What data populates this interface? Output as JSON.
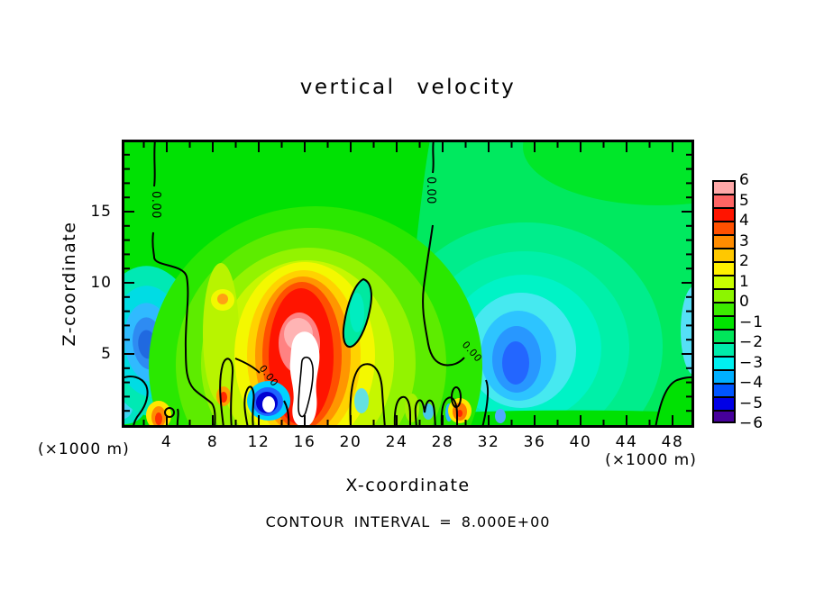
{
  "title": "vertical velocity",
  "axes": {
    "x": {
      "label": "X-coordinate",
      "ticks": [
        4,
        8,
        12,
        16,
        20,
        24,
        28,
        32,
        36,
        40,
        44,
        48
      ],
      "minor_step": 2,
      "range": [
        0,
        50
      ]
    },
    "z": {
      "label": "Z-coordinate",
      "ticks": [
        5,
        10,
        15
      ],
      "minor_step": 1,
      "range": [
        0,
        20
      ]
    }
  },
  "units": {
    "left": "(×1000 m)",
    "right": "(×1000 m)"
  },
  "colorbar": {
    "tick_labels": [
      "6",
      "5",
      "4",
      "3",
      "2",
      "1",
      "0",
      "−1",
      "−2",
      "−3",
      "−4",
      "−5",
      "−6"
    ],
    "cell_colors": [
      "#FFA8A8",
      "#FF6464",
      "#FF1400",
      "#FF5000",
      "#FF8C00",
      "#FFC800",
      "#FFF000",
      "#C8FF00",
      "#8CF500",
      "#3CEB00",
      "#00E400",
      "#00E65A",
      "#00EBAA",
      "#00F0F0",
      "#00AFFF",
      "#0055FF",
      "#0000E6",
      "#46009B"
    ]
  },
  "contour_label": "0.00",
  "footer": "CONTOUR INTERVAL = 8.000E+00",
  "chart_data": {
    "type": "heatmap",
    "subtype": "filled_contour_with_zero_contour_lines",
    "title": "vertical velocity",
    "xlabel": "X-coordinate (×1000 m)",
    "ylabel": "Z-coordinate (×1000 m)",
    "xlim": [
      0,
      50
    ],
    "ylim": [
      0,
      20
    ],
    "x_ticks": [
      4,
      8,
      12,
      16,
      20,
      24,
      28,
      32,
      36,
      40,
      44,
      48
    ],
    "y_ticks": [
      5,
      10,
      15
    ],
    "colorbar": {
      "orientation": "vertical",
      "position": "right",
      "tick_labels": [
        6,
        5,
        4,
        3,
        2,
        1,
        0,
        -1,
        -2,
        -3,
        -4,
        -5,
        -6
      ]
    },
    "contour_interval_note": "CONTOUR INTERVAL = 8.000E+00",
    "zero_contour_label": "0.00",
    "features": [
      {
        "label": "strong updraft maximum",
        "x_center": 16.5,
        "z_center": 4.5,
        "x_extent": [
          12,
          22
        ],
        "z_extent": [
          0,
          11
        ],
        "level": "> 6 (white off-scale core)"
      },
      {
        "label": "pink/red ring around updraft",
        "x_center": 16,
        "z_center": 6,
        "level": "5 to 6"
      },
      {
        "label": "yellow-orange halo of updraft",
        "x_extent": [
          10,
          24
        ],
        "z_extent": [
          0,
          13
        ],
        "level": "2 to 4"
      },
      {
        "label": "weak updraft patch",
        "x_center": 9,
        "z_center": 9.3,
        "level": "about 2"
      },
      {
        "label": "downdraft at left edge",
        "x_center": 2.5,
        "z_center": 6,
        "level": "-3 to -4"
      },
      {
        "label": "intense low-level downdraft",
        "x_center": 12.8,
        "z_center": 1.8,
        "level": "< -6 (white off-scale core)"
      },
      {
        "label": "downdraft right of domain center",
        "x_center": 33.5,
        "z_center": 5,
        "level": "-3 to -4"
      },
      {
        "label": "broad weak negative region",
        "x_extent": [
          27,
          50
        ],
        "z_extent": [
          0,
          20
        ],
        "level": "0 to -2"
      },
      {
        "label": "small low-level updraft",
        "x_center": 29.5,
        "z_center": 1,
        "level": "about 3"
      },
      {
        "label": "small low-level updraft left",
        "x_center": 3.2,
        "z_center": 0.8,
        "level": "about 3"
      },
      {
        "label": "zero contour line (vertical, left)",
        "x_center": 3,
        "z_extent": [
          5,
          20
        ]
      },
      {
        "label": "zero contour line (vertical, center-right)",
        "x_center": 27,
        "z_extent": [
          0,
          20
        ]
      },
      {
        "label": "closed zero contour (tilted oval)",
        "x_extent": [
          19,
          22
        ],
        "z_extent": [
          5.5,
          10.5
        ]
      }
    ]
  }
}
